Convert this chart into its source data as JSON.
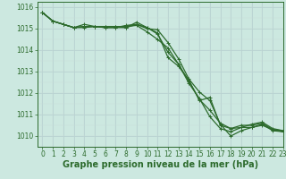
{
  "background_color": "#cce8e0",
  "grid_color_major": "#b0cccc",
  "grid_color_minor": "#c8dcd8",
  "line_color": "#2d6b2d",
  "xlabel": "Graphe pression niveau de la mer (hPa)",
  "xlabel_fontsize": 7,
  "ylim": [
    1009.5,
    1016.25
  ],
  "xlim": [
    -0.5,
    23
  ],
  "yticks": [
    1010,
    1011,
    1012,
    1013,
    1014,
    1015,
    1016
  ],
  "xticks": [
    0,
    1,
    2,
    3,
    4,
    5,
    6,
    7,
    8,
    9,
    10,
    11,
    12,
    13,
    14,
    15,
    16,
    17,
    18,
    19,
    20,
    21,
    22,
    23
  ],
  "tick_fontsize": 5.5,
  "series": [
    [
      1015.75,
      1015.35,
      1015.2,
      1015.05,
      1015.05,
      1015.1,
      1015.05,
      1015.05,
      1015.15,
      1015.2,
      1015.05,
      1014.75,
      1013.9,
      1013.35,
      1012.45,
      1011.75,
      1010.9,
      1010.35,
      1010.2,
      1010.4,
      1010.4,
      1010.55,
      1010.25,
      1010.2
    ],
    [
      1015.75,
      1015.35,
      1015.2,
      1015.05,
      1015.2,
      1015.1,
      1015.1,
      1015.1,
      1015.05,
      1015.3,
      1015.05,
      1014.8,
      1013.65,
      1013.25,
      1012.6,
      1011.65,
      1011.8,
      1010.5,
      1010.35,
      1010.5,
      1010.5,
      1010.6,
      1010.3,
      1010.25
    ],
    [
      1015.75,
      1015.35,
      1015.2,
      1015.05,
      1015.1,
      1015.1,
      1015.1,
      1015.1,
      1015.1,
      1015.15,
      1014.85,
      1014.5,
      1014.1,
      1013.35,
      1012.55,
      1011.7,
      1011.2,
      1010.6,
      1010.35,
      1010.4,
      1010.55,
      1010.65,
      1010.35,
      1010.25
    ],
    [
      1015.75,
      1015.35,
      1015.2,
      1015.05,
      1015.1,
      1015.1,
      1015.05,
      1015.05,
      1015.05,
      1015.2,
      1015.0,
      1014.95,
      1014.35,
      1013.6,
      1012.65,
      1012.05,
      1011.65,
      1010.55,
      1010.0,
      1010.25,
      1010.4,
      1010.5,
      1010.3,
      1010.2
    ]
  ]
}
